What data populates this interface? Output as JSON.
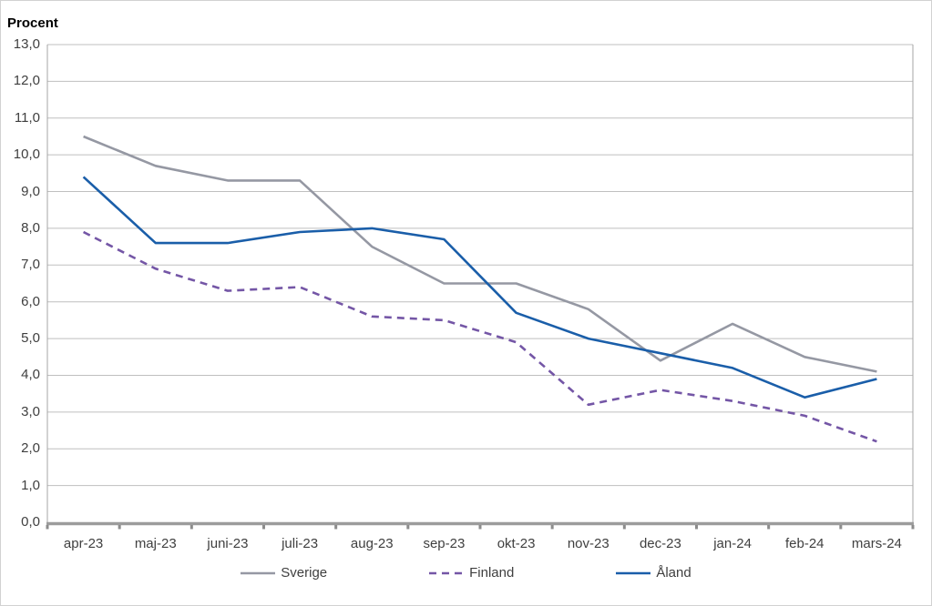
{
  "chart_data": {
    "type": "line",
    "title": "Procent",
    "categories": [
      "apr-23",
      "maj-23",
      "juni-23",
      "juli-23",
      "aug-23",
      "sep-23",
      "okt-23",
      "nov-23",
      "dec-23",
      "jan-24",
      "feb-24",
      "mars-24"
    ],
    "series": [
      {
        "name": "Sverige",
        "color": "#9598A3",
        "style": "solid",
        "values": [
          10.5,
          9.7,
          9.3,
          9.3,
          7.5,
          6.5,
          6.5,
          5.8,
          4.4,
          5.4,
          4.5,
          4.1
        ]
      },
      {
        "name": "Finland",
        "color": "#7456A6",
        "style": "dashed",
        "values": [
          7.9,
          6.9,
          6.3,
          6.4,
          5.6,
          5.5,
          4.9,
          3.2,
          3.6,
          3.3,
          2.9,
          2.2
        ]
      },
      {
        "name": "Åland",
        "color": "#1A5EA9",
        "style": "solid",
        "values": [
          9.4,
          7.6,
          7.6,
          7.9,
          8.0,
          7.7,
          5.7,
          5.0,
          4.6,
          4.2,
          3.4,
          3.9
        ]
      }
    ],
    "ylabel": "Procent",
    "xlabel": "",
    "ylim": [
      0,
      13
    ],
    "ytick_step": 1,
    "ytick_labels": [
      "0,0",
      "1,0",
      "2,0",
      "3,0",
      "4,0",
      "5,0",
      "6,0",
      "7,0",
      "8,0",
      "9,0",
      "10,0",
      "11,0",
      "12,0",
      "13,0"
    ],
    "grid": true,
    "legend_position": "bottom"
  },
  "colors": {
    "gridline": "#bfbfbf",
    "plot_border": "#a6a6a6",
    "axis_line": "#9c9c9c",
    "tick_mark": "#8c8c8c",
    "tick_label": "#3f3f3f"
  }
}
